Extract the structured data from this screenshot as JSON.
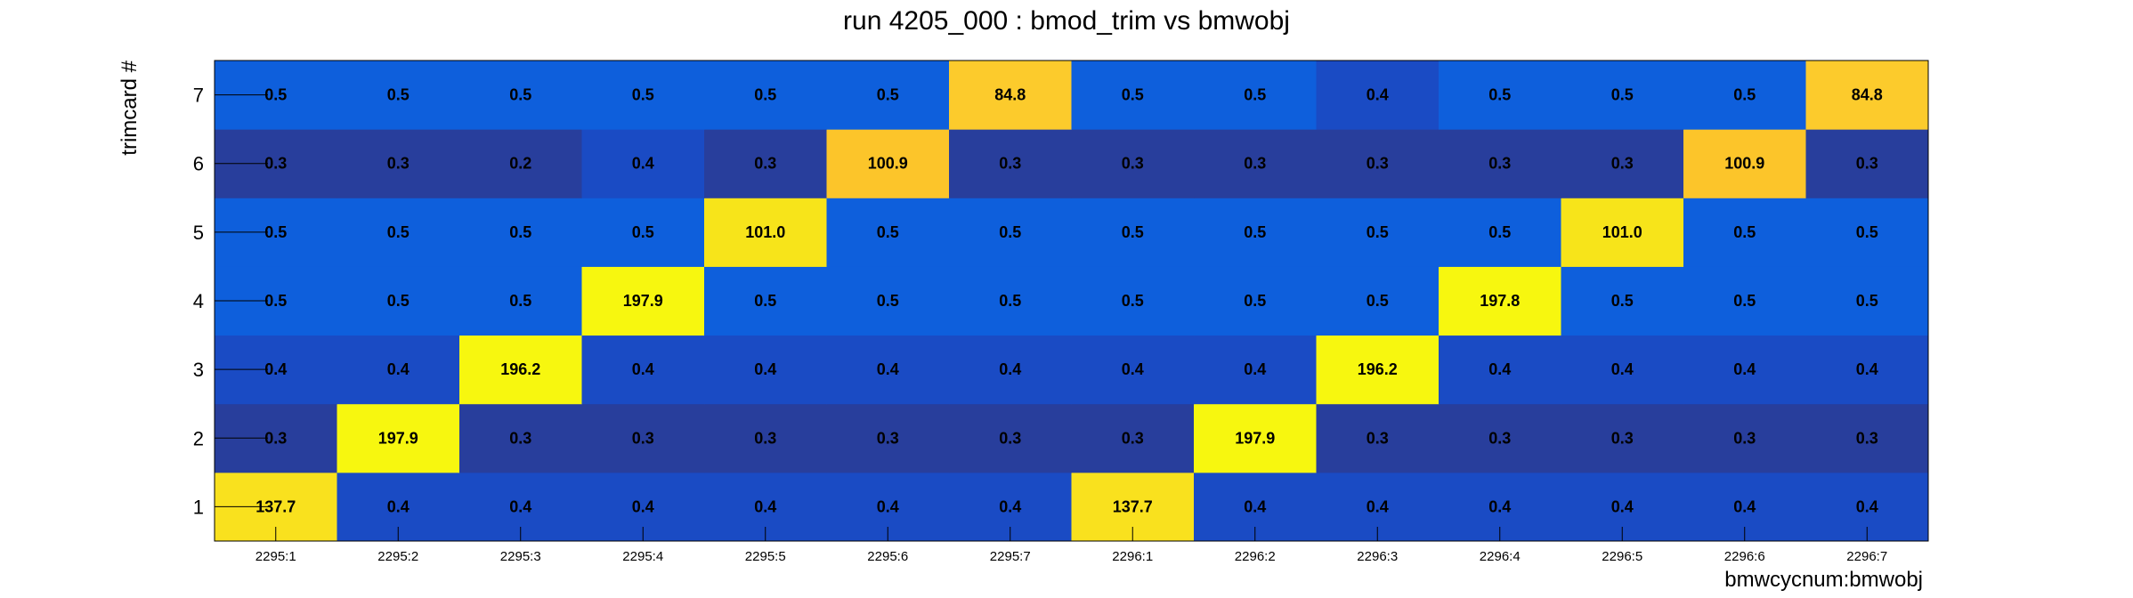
{
  "chart_data": {
    "type": "heatmap",
    "title": "run 4205_000 : bmod_trim vs bmwobj",
    "xlabel": "bmwcycnum:bmwobj",
    "ylabel": "trimcard #",
    "x_categories": [
      "2295:1",
      "2295:2",
      "2295:3",
      "2295:4",
      "2295:5",
      "2295:6",
      "2295:7",
      "2296:1",
      "2296:2",
      "2296:3",
      "2296:4",
      "2296:5",
      "2296:6",
      "2296:7"
    ],
    "y_categories": [
      "1",
      "2",
      "3",
      "4",
      "5",
      "6",
      "7"
    ],
    "values": [
      [
        137.7,
        0.4,
        0.4,
        0.4,
        0.4,
        0.4,
        0.4,
        137.7,
        0.4,
        0.4,
        0.4,
        0.4,
        0.4,
        0.4
      ],
      [
        0.3,
        197.9,
        0.3,
        0.3,
        0.3,
        0.3,
        0.3,
        0.3,
        197.9,
        0.3,
        0.3,
        0.3,
        0.3,
        0.3
      ],
      [
        0.4,
        0.4,
        196.2,
        0.4,
        0.4,
        0.4,
        0.4,
        0.4,
        0.4,
        196.2,
        0.4,
        0.4,
        0.4,
        0.4
      ],
      [
        0.5,
        0.5,
        0.5,
        197.9,
        0.5,
        0.5,
        0.5,
        0.5,
        0.5,
        0.5,
        197.8,
        0.5,
        0.5,
        0.5
      ],
      [
        0.5,
        0.5,
        0.5,
        0.5,
        101.0,
        0.5,
        0.5,
        0.5,
        0.5,
        0.5,
        0.5,
        101.0,
        0.5,
        0.5
      ],
      [
        0.3,
        0.3,
        0.2,
        0.4,
        0.3,
        100.9,
        0.3,
        0.3,
        0.3,
        0.3,
        0.3,
        0.3,
        100.9,
        0.3
      ],
      [
        0.5,
        0.5,
        0.5,
        0.5,
        0.5,
        0.5,
        84.8,
        0.5,
        0.5,
        0.4,
        0.5,
        0.5,
        0.5,
        84.8
      ]
    ],
    "value_labels": [
      [
        "137.7",
        "0.4",
        "0.4",
        "0.4",
        "0.4",
        "0.4",
        "0.4",
        "137.7",
        "0.4",
        "0.4",
        "0.4",
        "0.4",
        "0.4",
        "0.4"
      ],
      [
        "0.3",
        "197.9",
        "0.3",
        "0.3",
        "0.3",
        "0.3",
        "0.3",
        "0.3",
        "197.9",
        "0.3",
        "0.3",
        "0.3",
        "0.3",
        "0.3"
      ],
      [
        "0.4",
        "0.4",
        "196.2",
        "0.4",
        "0.4",
        "0.4",
        "0.4",
        "0.4",
        "0.4",
        "196.2",
        "0.4",
        "0.4",
        "0.4",
        "0.4"
      ],
      [
        "0.5",
        "0.5",
        "0.5",
        "197.9",
        "0.5",
        "0.5",
        "0.5",
        "0.5",
        "0.5",
        "0.5",
        "197.8",
        "0.5",
        "0.5",
        "0.5"
      ],
      [
        "0.5",
        "0.5",
        "0.5",
        "0.5",
        "101.0",
        "0.5",
        "0.5",
        "0.5",
        "0.5",
        "0.5",
        "0.5",
        "101.0",
        "0.5",
        "0.5"
      ],
      [
        "0.3",
        "0.3",
        "0.2",
        "0.4",
        "0.3",
        "100.9",
        "0.3",
        "0.3",
        "0.3",
        "0.3",
        "0.3",
        "0.3",
        "100.9",
        "0.3"
      ],
      [
        "0.5",
        "0.5",
        "0.5",
        "0.5",
        "0.5",
        "0.5",
        "84.8",
        "0.5",
        "0.5",
        "0.4",
        "0.5",
        "0.5",
        "0.5",
        "84.8"
      ]
    ],
    "colormap": {
      "0.2": "#283e9c",
      "0.3": "#283e9c",
      "0.4": "#1a4bc4",
      "0.5": "#0e5fdc",
      "84.8": "#fccb2c",
      "100.9": "#fcc52a",
      "101.0": "#f7e41a",
      "137.7": "#f9e11e",
      "196.2": "#f7f70f",
      "197.8": "#f7f70f",
      "197.9": "#f7f70f"
    },
    "grid": false,
    "legend": "none"
  }
}
